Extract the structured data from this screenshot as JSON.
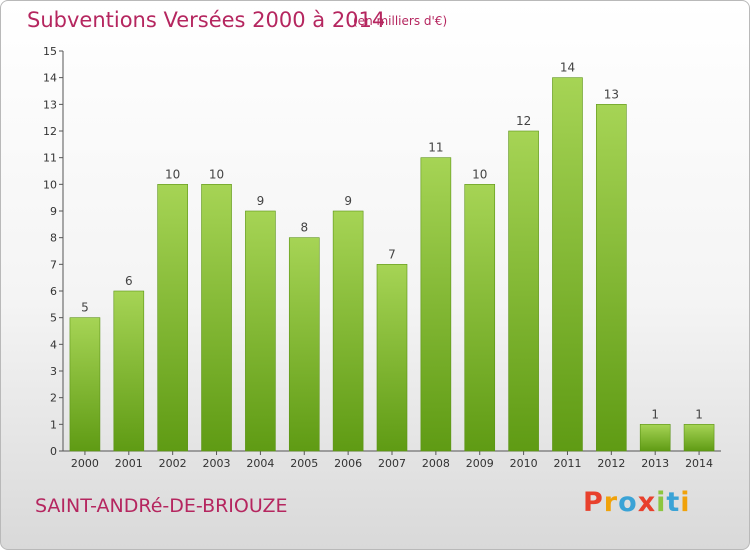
{
  "header": {
    "title": "Subventions Versées 2000 à 2014",
    "subtitle": "(en milliers d'€)"
  },
  "footer": {
    "commune": "SAINT-ANDRé-DE-BRIOUZE",
    "logo_letters": [
      "P",
      "r",
      "o",
      "x",
      "i",
      "t",
      "i"
    ],
    "logo_colors": [
      "#e8402c",
      "#f0a20a",
      "#3aa3d6",
      "#e8402c",
      "#8cc63f",
      "#3aa3d6",
      "#f0a20a"
    ]
  },
  "chart_data": {
    "type": "bar",
    "categories": [
      "2000",
      "2001",
      "2002",
      "2003",
      "2004",
      "2005",
      "2006",
      "2007",
      "2008",
      "2009",
      "2010",
      "2011",
      "2012",
      "2013",
      "2014"
    ],
    "values": [
      5,
      6,
      10,
      10,
      9,
      8,
      9,
      7,
      11,
      10,
      12,
      14,
      13,
      1,
      1
    ],
    "ylim": [
      0,
      15
    ],
    "yticks": [
      0,
      1,
      2,
      3,
      4,
      5,
      6,
      7,
      8,
      9,
      10,
      11,
      12,
      13,
      14,
      15
    ],
    "grid": false,
    "bar_color": "#7fbf2a",
    "title": "Subventions Versées 2000 à 2014",
    "subtitle": "(en milliers d'€)"
  }
}
